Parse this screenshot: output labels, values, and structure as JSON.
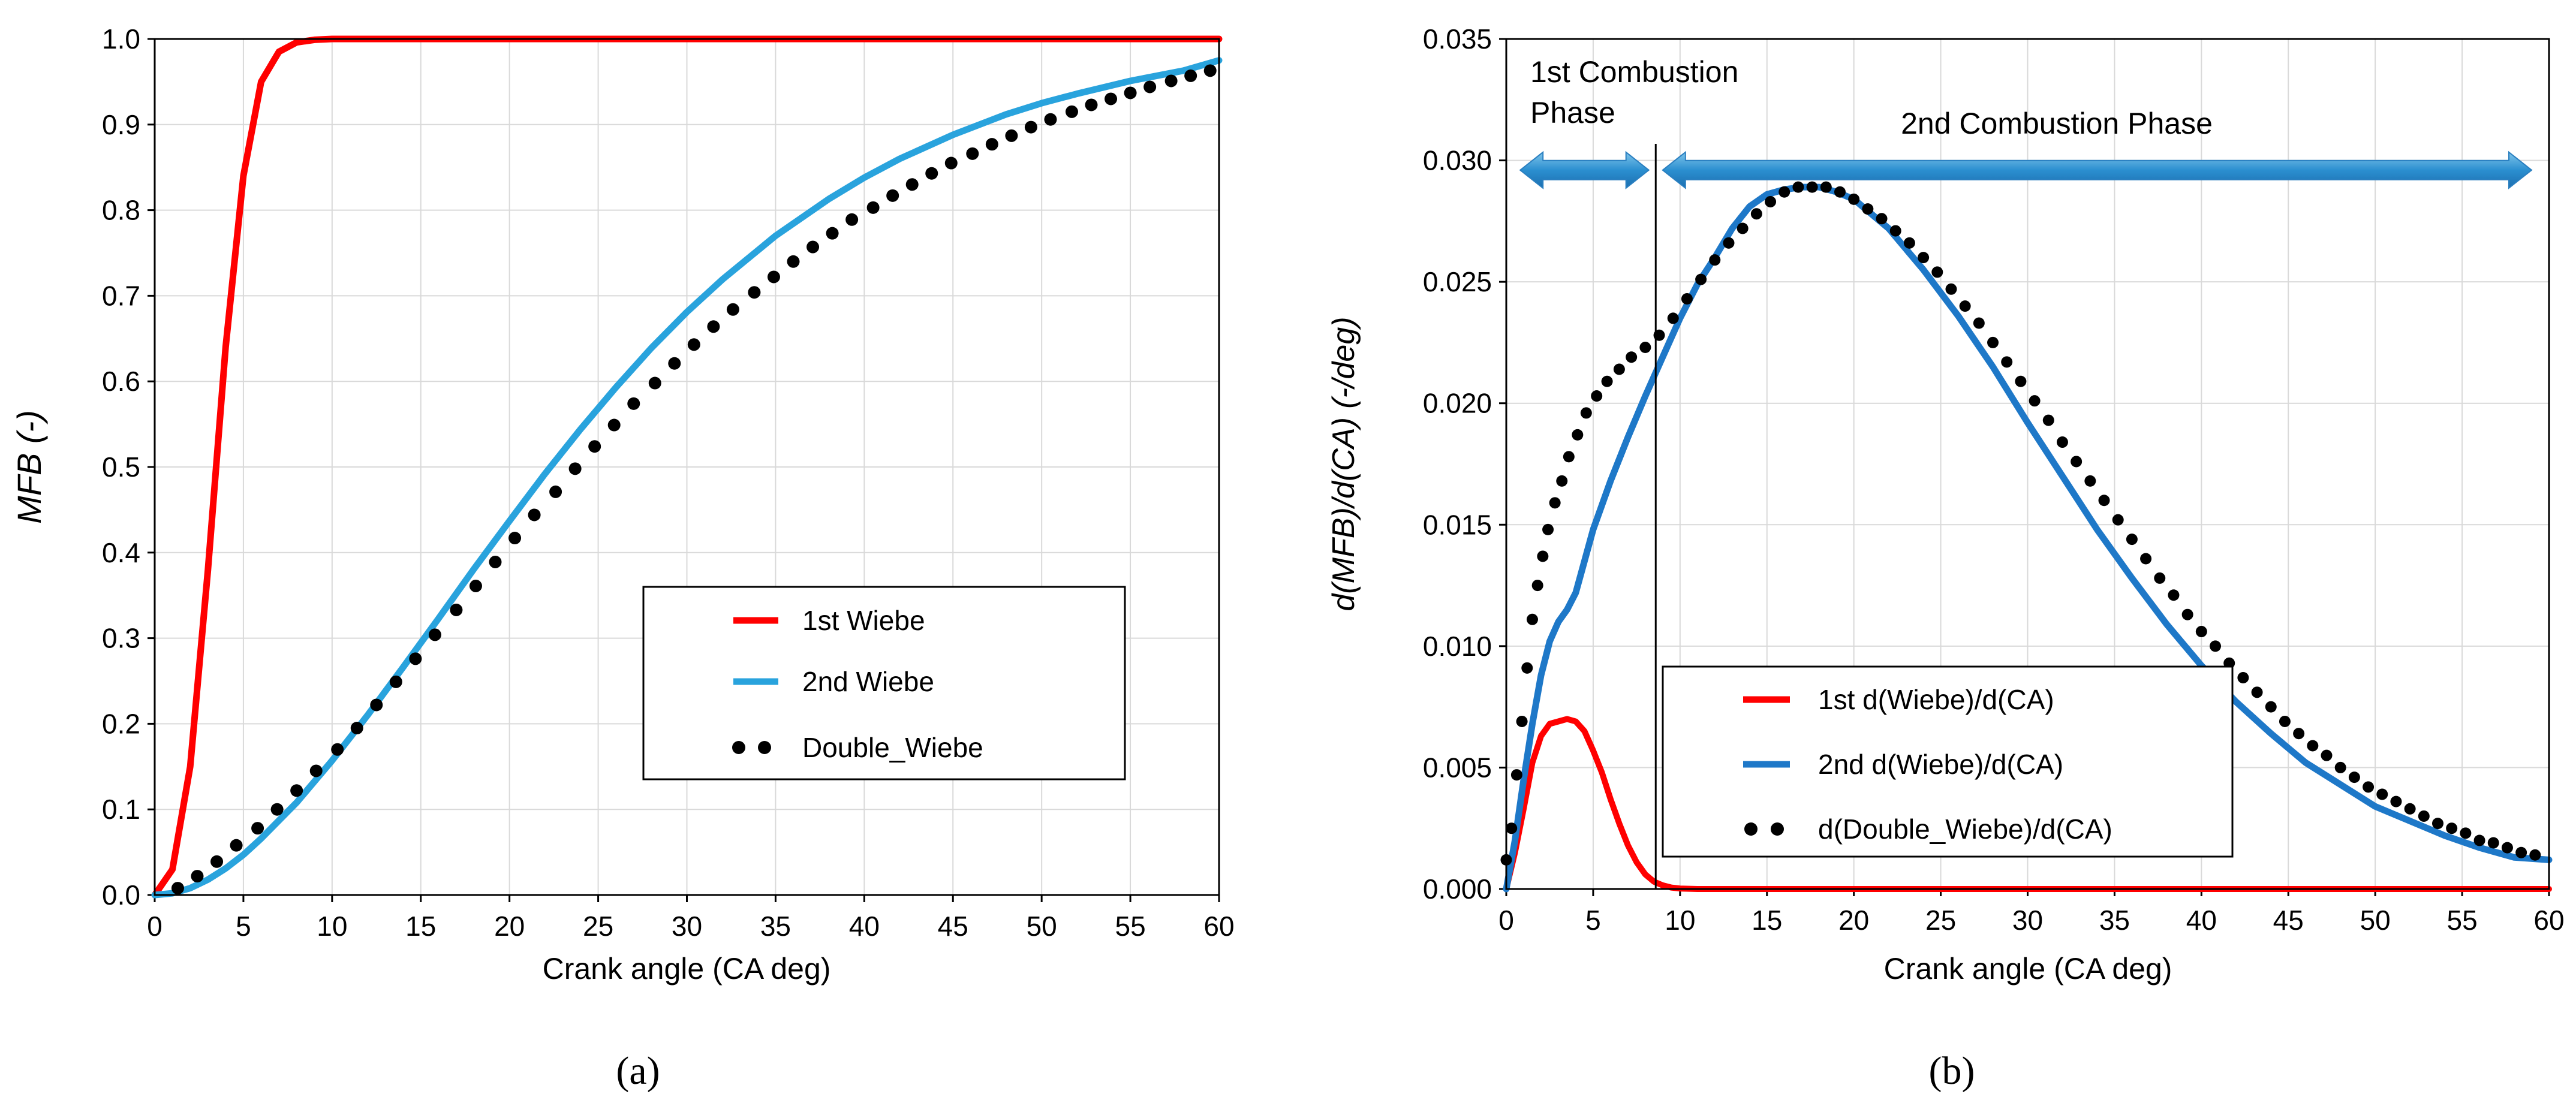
{
  "chart_data": [
    {
      "type": "line",
      "panel_label": "(a)",
      "title": "",
      "xlabel": "Crank angle (CA deg)",
      "ylabel": "MFB  (-)",
      "xlim": [
        0,
        60
      ],
      "ylim": [
        0,
        1.0
      ],
      "xticks": [
        0,
        5,
        10,
        15,
        20,
        25,
        30,
        35,
        40,
        45,
        50,
        55,
        60
      ],
      "yticks": [
        0.0,
        0.1,
        0.2,
        0.3,
        0.4,
        0.5,
        0.6,
        0.7,
        0.8,
        0.9,
        1.0
      ],
      "ytick_labels": [
        "0.0",
        "0.1",
        "0.2",
        "0.3",
        "0.4",
        "0.5",
        "0.6",
        "0.7",
        "0.8",
        "0.9",
        "1.0"
      ],
      "grid": true,
      "legend_position": "center-right",
      "legend": [
        "1st Wiebe",
        "2nd Wiebe",
        "Double_Wiebe"
      ],
      "series": [
        {
          "name": "1st Wiebe",
          "color": "#ff0000",
          "style": "solid",
          "x": [
            0,
            1,
            2,
            3,
            4,
            5,
            6,
            7,
            8,
            9,
            10,
            12,
            15,
            20,
            30,
            40,
            50,
            60
          ],
          "y": [
            0.0,
            0.03,
            0.15,
            0.38,
            0.64,
            0.84,
            0.95,
            0.985,
            0.996,
            0.999,
            1.0,
            1.0,
            1.0,
            1.0,
            1.0,
            1.0,
            1.0,
            1.0
          ]
        },
        {
          "name": "2nd Wiebe",
          "color": "#29a3dd",
          "style": "solid",
          "x": [
            0,
            1,
            2,
            3,
            4,
            5,
            6,
            8,
            10,
            12,
            14,
            16,
            18,
            20,
            22,
            24,
            26,
            28,
            30,
            32,
            35,
            38,
            40,
            42,
            45,
            48,
            50,
            52,
            55,
            58,
            60
          ],
          "y": [
            0.0,
            0.002,
            0.008,
            0.018,
            0.031,
            0.047,
            0.066,
            0.108,
            0.157,
            0.21,
            0.266,
            0.323,
            0.381,
            0.437,
            0.492,
            0.544,
            0.593,
            0.639,
            0.681,
            0.719,
            0.77,
            0.813,
            0.838,
            0.86,
            0.888,
            0.912,
            0.925,
            0.936,
            0.951,
            0.963,
            0.975
          ]
        },
        {
          "name": "Double_Wiebe",
          "color": "#000000",
          "style": "dotted",
          "x": [
            1.3,
            2.4,
            3.5,
            4.6,
            5.8,
            6.9,
            8,
            9.1,
            10.3,
            11.4,
            12.5,
            13.6,
            14.7,
            15.8,
            17,
            18.1,
            19.2,
            20.3,
            21.4,
            22.6,
            23.7,
            24.8,
            25.9,
            27,
            28.2,
            29.3,
            30.4,
            31.5,
            32.6,
            33.8,
            34.9,
            36,
            37.1,
            38.2,
            39.3,
            40.5,
            41.6,
            42.7,
            43.8,
            44.9,
            46.1,
            47.2,
            48.3,
            49.4,
            50.5,
            51.7,
            52.8,
            53.9,
            55,
            56.1,
            57.3,
            58.4,
            59.5
          ],
          "y": [
            0.008,
            0.022,
            0.039,
            0.058,
            0.078,
            0.1,
            0.122,
            0.145,
            0.17,
            0.195,
            0.222,
            0.249,
            0.276,
            0.304,
            0.333,
            0.361,
            0.389,
            0.417,
            0.444,
            0.471,
            0.498,
            0.524,
            0.549,
            0.574,
            0.598,
            0.621,
            0.643,
            0.664,
            0.684,
            0.704,
            0.722,
            0.74,
            0.757,
            0.773,
            0.789,
            0.803,
            0.817,
            0.83,
            0.843,
            0.855,
            0.866,
            0.877,
            0.887,
            0.897,
            0.906,
            0.915,
            0.923,
            0.93,
            0.937,
            0.944,
            0.951,
            0.957,
            0.963
          ]
        }
      ]
    },
    {
      "type": "line",
      "panel_label": "(b)",
      "title": "",
      "xlabel": "Crank angle (CA deg)",
      "ylabel": "d(MFB)/d(CA)  (-/deg)",
      "xlim": [
        0,
        60
      ],
      "ylim": [
        0,
        0.035
      ],
      "xticks": [
        0,
        5,
        10,
        15,
        20,
        25,
        30,
        35,
        40,
        45,
        50,
        55,
        60
      ],
      "yticks": [
        0.0,
        0.005,
        0.01,
        0.015,
        0.02,
        0.025,
        0.03,
        0.035
      ],
      "ytick_labels": [
        "0.000",
        "0.005",
        "0.010",
        "0.015",
        "0.020",
        "0.025",
        "0.030",
        "0.035"
      ],
      "grid": true,
      "legend_position": "bottom-center",
      "legend": [
        "1st d(Wiebe)/d(CA)",
        "2nd d(Wiebe)/d(CA)",
        "d(Double_Wiebe)/d(CA)"
      ],
      "annotations": {
        "phase1_label": "1st Combustion",
        "phase1_label_line2": "Phase",
        "phase2_label": "2nd Combustion Phase",
        "divider_x": 8.6,
        "arrow1_range": [
          0.8,
          8.2
        ],
        "arrow2_range": [
          9.0,
          59.0
        ],
        "arrow_level": 0.0296
      },
      "series": [
        {
          "name": "1st d(Wiebe)/d(CA)",
          "color": "#ff0000",
          "style": "solid",
          "x": [
            0,
            0.5,
            1,
            1.5,
            2,
            2.5,
            3,
            3.5,
            4,
            4.5,
            5,
            5.5,
            6,
            6.5,
            7,
            7.5,
            8,
            8.5,
            9,
            9.5,
            10,
            11,
            12,
            14,
            20,
            30,
            40,
            50,
            60
          ],
          "y": [
            0.0,
            0.0015,
            0.0033,
            0.0052,
            0.0063,
            0.0068,
            0.0069,
            0.007,
            0.0069,
            0.0065,
            0.0057,
            0.0048,
            0.0037,
            0.0027,
            0.0018,
            0.0011,
            0.0006,
            0.0003,
            0.00015,
            6e-05,
            2e-05,
            0.0,
            0.0,
            0.0,
            0.0,
            0.0,
            0.0,
            0.0,
            0.0
          ]
        },
        {
          "name": "2nd d(Wiebe)/d(CA)",
          "color": "#1e78c8",
          "style": "solid",
          "x": [
            0,
            0.5,
            1,
            1.5,
            2,
            2.5,
            3,
            3.5,
            4,
            4.5,
            5,
            6,
            7,
            8,
            9,
            10,
            11,
            12,
            13,
            14,
            15,
            16,
            17,
            18,
            19,
            20,
            22,
            24,
            26,
            28,
            30,
            32,
            34,
            36,
            38,
            40,
            42,
            44,
            46,
            48,
            50,
            52,
            54,
            56,
            58,
            60
          ],
          "y": [
            0.0,
            0.002,
            0.0045,
            0.0068,
            0.0088,
            0.0102,
            0.011,
            0.0115,
            0.0122,
            0.0135,
            0.0148,
            0.0168,
            0.0186,
            0.0203,
            0.0219,
            0.0235,
            0.0249,
            0.026,
            0.0272,
            0.0281,
            0.0286,
            0.0288,
            0.0289,
            0.0289,
            0.0287,
            0.0284,
            0.0272,
            0.0255,
            0.0236,
            0.0215,
            0.0192,
            0.017,
            0.0148,
            0.0128,
            0.0109,
            0.0092,
            0.0077,
            0.0064,
            0.0052,
            0.0043,
            0.0034,
            0.0028,
            0.0022,
            0.0017,
            0.0013,
            0.0012
          ]
        },
        {
          "name": "d(Double_Wiebe)/d(CA)",
          "color": "#000000",
          "style": "dotted",
          "x": [
            0,
            0.3,
            0.6,
            0.9,
            1.2,
            1.5,
            1.8,
            2.1,
            2.4,
            2.8,
            3.2,
            3.6,
            4.1,
            4.6,
            5.2,
            5.8,
            6.5,
            7.2,
            8,
            8.8,
            9.6,
            10.4,
            11.2,
            12,
            12.8,
            13.6,
            14.4,
            15.2,
            16,
            16.8,
            17.6,
            18.4,
            19.2,
            20,
            20.8,
            21.6,
            22.4,
            23.2,
            24,
            24.8,
            25.6,
            26.4,
            27.2,
            28,
            28.8,
            29.6,
            30.4,
            31.2,
            32,
            32.8,
            33.6,
            34.4,
            35.2,
            36,
            36.8,
            37.6,
            38.4,
            39.2,
            40,
            40.8,
            41.6,
            42.4,
            43.2,
            44,
            44.8,
            45.6,
            46.4,
            47.2,
            48,
            48.8,
            49.6,
            50.4,
            51.2,
            52,
            52.8,
            53.6,
            54.4,
            55.2,
            56,
            56.8,
            57.6,
            58.4,
            59.2
          ],
          "y": [
            0.0012,
            0.0025,
            0.0047,
            0.0069,
            0.0091,
            0.0111,
            0.0125,
            0.0137,
            0.0148,
            0.0159,
            0.0168,
            0.0178,
            0.0187,
            0.0196,
            0.0203,
            0.0209,
            0.0214,
            0.0219,
            0.0223,
            0.0228,
            0.0235,
            0.0243,
            0.0251,
            0.0259,
            0.0266,
            0.0272,
            0.0278,
            0.0283,
            0.0287,
            0.0289,
            0.0289,
            0.0289,
            0.0287,
            0.0284,
            0.028,
            0.0276,
            0.0271,
            0.0266,
            0.026,
            0.0254,
            0.0247,
            0.024,
            0.0233,
            0.0225,
            0.0217,
            0.0209,
            0.0201,
            0.0193,
            0.0184,
            0.0176,
            0.0168,
            0.016,
            0.0152,
            0.0144,
            0.0136,
            0.0128,
            0.0121,
            0.0113,
            0.0106,
            0.01,
            0.0093,
            0.0087,
            0.0081,
            0.0075,
            0.0069,
            0.0064,
            0.0059,
            0.0055,
            0.005,
            0.0046,
            0.0042,
            0.0039,
            0.0036,
            0.0033,
            0.003,
            0.0027,
            0.0025,
            0.0023,
            0.002,
            0.0019,
            0.0017,
            0.0015,
            0.0014
          ]
        }
      ]
    }
  ]
}
